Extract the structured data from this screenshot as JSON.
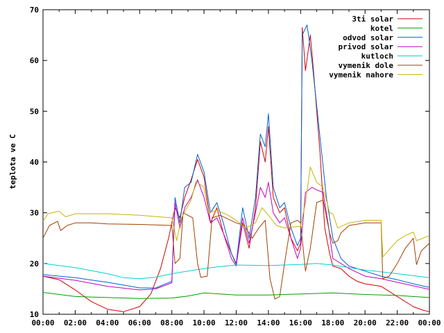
{
  "chart_data": {
    "type": "line",
    "ylabel": "teplota ve C",
    "xlabel": "",
    "title": "",
    "ylim": [
      10,
      70
    ],
    "xlim": [
      0,
      24
    ],
    "y_ticks": [
      "10",
      "20",
      "30",
      "40",
      "50",
      "60",
      "70"
    ],
    "x_ticks": [
      "00:00",
      "02:00",
      "04:00",
      "06:00",
      "08:00",
      "10:00",
      "12:00",
      "14:00",
      "16:00",
      "18:00",
      "20:00",
      "22:00",
      "00:00"
    ],
    "grid": false,
    "legend_position": "top-right",
    "series": [
      {
        "name": "3ti solar",
        "color": "#d00000",
        "points": [
          [
            0,
            17.5
          ],
          [
            1,
            16.8
          ],
          [
            2,
            14.8
          ],
          [
            3,
            12.5
          ],
          [
            4,
            11
          ],
          [
            5,
            10.5
          ],
          [
            6,
            11.5
          ],
          [
            6.7,
            14
          ],
          [
            7.3,
            19
          ],
          [
            7.8,
            25
          ],
          [
            8.2,
            31
          ],
          [
            8.5,
            29
          ],
          [
            8.8,
            33
          ],
          [
            9.2,
            36.5
          ],
          [
            9.6,
            40.5
          ],
          [
            10,
            37
          ],
          [
            10.4,
            28
          ],
          [
            10.8,
            31
          ],
          [
            11.2,
            26
          ],
          [
            11.7,
            22
          ],
          [
            12,
            19.8
          ],
          [
            12.4,
            28
          ],
          [
            12.8,
            23
          ],
          [
            13.2,
            31
          ],
          [
            13.5,
            44
          ],
          [
            13.8,
            40
          ],
          [
            14,
            47
          ],
          [
            14.3,
            33
          ],
          [
            14.7,
            30
          ],
          [
            15,
            31
          ],
          [
            15.4,
            25
          ],
          [
            15.8,
            22.5
          ],
          [
            16,
            24
          ],
          [
            16.1,
            66.5
          ],
          [
            16.3,
            58
          ],
          [
            16.6,
            65
          ],
          [
            16.8,
            58
          ],
          [
            17.2,
            42
          ],
          [
            17.5,
            27
          ],
          [
            17.8,
            22
          ],
          [
            18,
            19.5
          ],
          [
            18.5,
            19
          ],
          [
            19,
            17.5
          ],
          [
            19.5,
            16.5
          ],
          [
            20,
            16
          ],
          [
            21,
            15.5
          ],
          [
            22,
            13.5
          ],
          [
            23,
            11.5
          ],
          [
            23.6,
            10.8
          ],
          [
            24,
            10.5
          ]
        ]
      },
      {
        "name": "kotel",
        "color": "#00a000",
        "points": [
          [
            0,
            14.3
          ],
          [
            2,
            13.5
          ],
          [
            4,
            13.3
          ],
          [
            6,
            13.1
          ],
          [
            8,
            13.2
          ],
          [
            9,
            13.6
          ],
          [
            10,
            14.2
          ],
          [
            12,
            13.8
          ],
          [
            14,
            13.8
          ],
          [
            16,
            14
          ],
          [
            18,
            14.2
          ],
          [
            20,
            13.9
          ],
          [
            22,
            13.7
          ],
          [
            24,
            13.3
          ]
        ]
      },
      {
        "name": "odvod solar",
        "color": "#0060d0",
        "points": [
          [
            0,
            17.8
          ],
          [
            2,
            17.2
          ],
          [
            4,
            16.3
          ],
          [
            6,
            15.2
          ],
          [
            7,
            15.2
          ],
          [
            8,
            16.5
          ],
          [
            8.2,
            33
          ],
          [
            8.5,
            28
          ],
          [
            8.8,
            35
          ],
          [
            9.2,
            36
          ],
          [
            9.6,
            41.5
          ],
          [
            10,
            38
          ],
          [
            10.4,
            30
          ],
          [
            10.8,
            32
          ],
          [
            11.2,
            28
          ],
          [
            11.7,
            22
          ],
          [
            12,
            20
          ],
          [
            12.4,
            31
          ],
          [
            12.8,
            25
          ],
          [
            13.2,
            33
          ],
          [
            13.5,
            45.5
          ],
          [
            13.8,
            43
          ],
          [
            14,
            49.5
          ],
          [
            14.3,
            35
          ],
          [
            14.7,
            31
          ],
          [
            15,
            32
          ],
          [
            15.4,
            27
          ],
          [
            15.8,
            23.5
          ],
          [
            16,
            25
          ],
          [
            16.1,
            65
          ],
          [
            16.4,
            67
          ],
          [
            16.7,
            60
          ],
          [
            17.2,
            45
          ],
          [
            17.6,
            33
          ],
          [
            18,
            25
          ],
          [
            18.5,
            21
          ],
          [
            19,
            19.5
          ],
          [
            20,
            18.5
          ],
          [
            21,
            17.5
          ],
          [
            22,
            16.8
          ],
          [
            23,
            16
          ],
          [
            24,
            15.3
          ]
        ]
      },
      {
        "name": "privod solar",
        "color": "#c000c0",
        "points": [
          [
            0,
            17.5
          ],
          [
            2,
            16.7
          ],
          [
            4,
            15.5
          ],
          [
            6,
            14.8
          ],
          [
            7,
            15
          ],
          [
            8,
            16.2
          ],
          [
            8.2,
            32
          ],
          [
            8.5,
            27
          ],
          [
            8.8,
            31
          ],
          [
            9.2,
            33
          ],
          [
            9.6,
            36.5
          ],
          [
            10,
            33
          ],
          [
            10.4,
            28
          ],
          [
            10.8,
            29
          ],
          [
            11.2,
            26
          ],
          [
            11.7,
            21
          ],
          [
            12,
            19.5
          ],
          [
            12.4,
            29
          ],
          [
            12.8,
            24
          ],
          [
            13.2,
            30
          ],
          [
            13.5,
            35
          ],
          [
            13.8,
            33
          ],
          [
            14,
            36
          ],
          [
            14.3,
            30
          ],
          [
            14.7,
            28
          ],
          [
            15,
            29
          ],
          [
            15.4,
            25
          ],
          [
            15.8,
            21
          ],
          [
            16,
            23
          ],
          [
            16.3,
            34
          ],
          [
            16.7,
            35
          ],
          [
            17,
            34.5
          ],
          [
            17.4,
            34
          ],
          [
            17.7,
            28
          ],
          [
            18,
            21
          ],
          [
            18.5,
            20
          ],
          [
            19,
            19
          ],
          [
            20,
            17.5
          ],
          [
            21,
            17
          ],
          [
            22,
            16.3
          ],
          [
            23,
            15.6
          ],
          [
            24,
            14.9
          ]
        ]
      },
      {
        "name": "kutloch",
        "color": "#00d0d0",
        "points": [
          [
            0,
            20
          ],
          [
            2,
            19.2
          ],
          [
            4,
            18
          ],
          [
            5,
            17.2
          ],
          [
            6,
            17
          ],
          [
            7,
            17.3
          ],
          [
            8,
            18
          ],
          [
            9,
            18.5
          ],
          [
            10,
            19
          ],
          [
            11,
            19.4
          ],
          [
            12,
            19.7
          ],
          [
            14,
            19.6
          ],
          [
            16,
            19.8
          ],
          [
            17,
            20
          ],
          [
            18,
            19.7
          ],
          [
            19,
            19.2
          ],
          [
            20,
            18.7
          ],
          [
            22,
            18
          ],
          [
            24,
            17.2
          ]
        ]
      },
      {
        "name": "vymenik dole",
        "color": "#a04000",
        "points": [
          [
            0,
            25
          ],
          [
            0.4,
            27.5
          ],
          [
            0.9,
            28.3
          ],
          [
            1.1,
            26.5
          ],
          [
            1.5,
            27.5
          ],
          [
            2,
            28
          ],
          [
            3,
            28
          ],
          [
            4,
            27.8
          ],
          [
            6,
            27.7
          ],
          [
            7,
            27.6
          ],
          [
            8,
            27.5
          ],
          [
            8.2,
            20
          ],
          [
            8.5,
            21
          ],
          [
            8.7,
            30
          ],
          [
            9.3,
            29
          ],
          [
            9.6,
            20
          ],
          [
            9.8,
            17.3
          ],
          [
            10.2,
            17.5
          ],
          [
            10.5,
            29
          ],
          [
            11,
            29.5
          ],
          [
            12,
            28
          ],
          [
            12.5,
            27.5
          ],
          [
            13,
            25
          ],
          [
            13.4,
            27
          ],
          [
            13.8,
            28.5
          ],
          [
            14.1,
            17
          ],
          [
            14.4,
            13
          ],
          [
            14.7,
            13.5
          ],
          [
            15,
            20
          ],
          [
            15.4,
            28
          ],
          [
            15.8,
            28.5
          ],
          [
            16,
            28
          ],
          [
            16.3,
            18.5
          ],
          [
            16.6,
            23
          ],
          [
            17,
            32
          ],
          [
            17.4,
            32.5
          ],
          [
            17.8,
            26
          ],
          [
            18,
            24
          ],
          [
            18.3,
            24.5
          ],
          [
            18.5,
            26
          ],
          [
            19,
            27.5
          ],
          [
            20,
            28
          ],
          [
            21,
            28
          ],
          [
            21.1,
            17
          ],
          [
            21.5,
            17.5
          ],
          [
            22,
            20
          ],
          [
            22.5,
            23
          ],
          [
            23,
            25
          ],
          [
            23.2,
            19.8
          ],
          [
            23.5,
            22.5
          ],
          [
            24,
            24
          ]
        ]
      },
      {
        "name": "vymenik nahore",
        "color": "#c8b400",
        "points": [
          [
            0,
            28.3
          ],
          [
            0.3,
            29.8
          ],
          [
            1,
            30.3
          ],
          [
            1.4,
            29.2
          ],
          [
            2,
            29.8
          ],
          [
            4,
            29.8
          ],
          [
            6,
            29.5
          ],
          [
            8,
            29
          ],
          [
            8.3,
            24.5
          ],
          [
            8.6,
            29
          ],
          [
            9.2,
            32.5
          ],
          [
            9.5,
            36.2
          ],
          [
            10,
            35
          ],
          [
            10.3,
            30
          ],
          [
            10.8,
            30.5
          ],
          [
            11.5,
            29.5
          ],
          [
            12,
            28.5
          ],
          [
            12.6,
            27
          ],
          [
            13.2,
            28
          ],
          [
            13.6,
            31
          ],
          [
            14,
            29.5
          ],
          [
            14.5,
            27.5
          ],
          [
            15,
            27
          ],
          [
            15.5,
            27.2
          ],
          [
            16,
            27.3
          ],
          [
            16.3,
            32
          ],
          [
            16.6,
            39
          ],
          [
            17,
            36
          ],
          [
            17.4,
            35
          ],
          [
            17.8,
            30
          ],
          [
            18,
            29.8
          ],
          [
            18.3,
            27
          ],
          [
            19,
            28
          ],
          [
            20,
            28.5
          ],
          [
            21,
            28.5
          ],
          [
            21.1,
            21.3
          ],
          [
            22,
            24.5
          ],
          [
            22.5,
            25.5
          ],
          [
            23,
            26.2
          ],
          [
            23.2,
            24.5
          ],
          [
            23.6,
            25
          ],
          [
            24,
            25.5
          ]
        ]
      }
    ]
  }
}
